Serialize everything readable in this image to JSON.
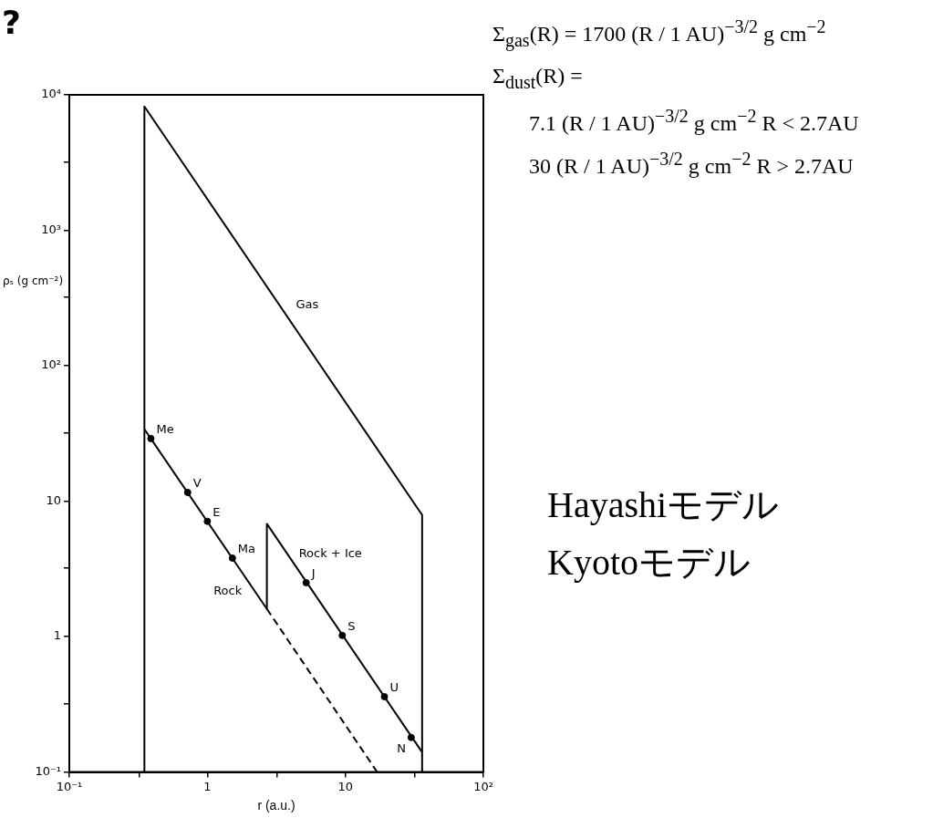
{
  "chart_data": {
    "type": "line",
    "title": "?",
    "xlabel": "r (a.u.)",
    "ylabel": "ρₛ (g cm⁻²)",
    "log": "xy",
    "xlim": [
      0.1,
      100
    ],
    "ylim": [
      0.1,
      10000
    ],
    "xticks": [
      {
        "value": 0.1,
        "label": "10⁻¹"
      },
      {
        "value": 0.32,
        "label": null
      },
      1,
      {
        "value": 3.2,
        "label": null
      },
      10,
      {
        "value": 32,
        "label": null
      },
      {
        "value": 100,
        "label": "10²"
      }
    ],
    "yticks": [
      {
        "value": 0.1,
        "label": "10⁻¹"
      },
      {
        "value": 0.32,
        "label": null
      },
      1,
      {
        "value": 3.2,
        "label": null
      },
      10,
      {
        "value": 32,
        "label": null
      },
      {
        "value": 100,
        "label": "10²"
      },
      {
        "value": 320,
        "label": null
      },
      {
        "value": 1000,
        "label": "10³"
      },
      {
        "value": 3200,
        "label": null
      },
      {
        "value": 10000,
        "label": "10⁴"
      }
    ],
    "series": [
      {
        "type": "line",
        "color": "#000000",
        "x": [
          0.35,
          0.35,
          36,
          36
        ],
        "values": [
          0.1,
          8200,
          7.9,
          0.1
        ]
      },
      {
        "type": "line",
        "color": "#000000",
        "x": [
          0.35,
          2.7
        ],
        "values": [
          34,
          1.6
        ]
      },
      {
        "type": "line",
        "color": "#000000",
        "x": [
          2.7,
          2.7,
          36
        ],
        "values": [
          1.6,
          6.8,
          0.14
        ]
      },
      {
        "type": "line",
        "color": "#000000",
        "line_style": "dashed",
        "x": [
          2.7,
          17
        ],
        "values": [
          1.6,
          0.1
        ]
      },
      {
        "type": "scatter",
        "color": "#000000",
        "marker": "circle",
        "x": [
          0.39,
          0.72,
          1,
          1.52,
          5.2,
          9.5,
          19.2,
          30
        ],
        "values": [
          29,
          11.6,
          7.1,
          3.8,
          2.5,
          1.02,
          0.36,
          0.18
        ]
      }
    ],
    "annotations": [
      {
        "text": "Gas",
        "x": 4,
        "y": 240
      },
      {
        "text": "Rock",
        "x": 1.95,
        "y": 2.6
      },
      {
        "text": "Rock + Ice",
        "x": 4.2,
        "y": 3.5
      },
      {
        "text": "Me",
        "x": 0.39,
        "y": 29
      },
      {
        "text": "V",
        "x": 0.72,
        "y": 11.6
      },
      {
        "text": "E",
        "x": 1,
        "y": 7.1
      },
      {
        "text": "Ma",
        "x": 1.52,
        "y": 3.8
      },
      {
        "text": "J",
        "x": 5.2,
        "y": 2.5
      },
      {
        "text": "S",
        "x": 9.5,
        "y": 1.02
      },
      {
        "text": "U",
        "x": 19.2,
        "y": 0.36
      },
      {
        "text": "N",
        "x": 30,
        "y": 0.18
      },
      "Σ$_{gas}$(R) = 1700 (R / 1 AU)$^{−3/2}$ g cm$^{−2}$",
      "Σ$_{dust}$(R) =",
      "7.1 (R / 1 AU)$^{−3/2}$ g cm$^{−2}$   R < 2.7AU",
      "30 (R / 1 AU)$^{−3/2}$ g cm$^{−2}$   R > 2.7AU",
      "Hayashiモデル",
      "Kyotoモデル"
    ]
  }
}
